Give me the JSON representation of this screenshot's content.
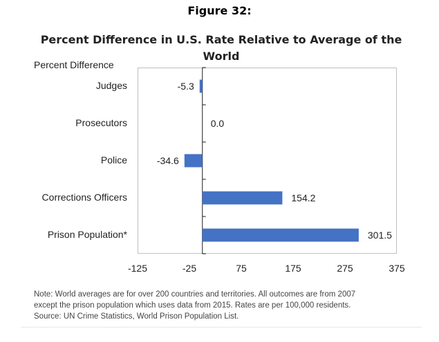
{
  "figure_label": "Figure 32:",
  "chart_data": {
    "type": "bar",
    "orientation": "horizontal",
    "title": "Percent Difference in U.S. Rate Relative to Average of the World",
    "ylabel": "Percent Difference",
    "xlabel": "",
    "categories": [
      "Judges",
      "Prosecutors",
      "Police",
      "Corrections Officers",
      "Prison Population*"
    ],
    "values": [
      -5.3,
      0.0,
      -34.6,
      154.2,
      301.5
    ],
    "value_labels": [
      "-5.3",
      "0.0",
      "-34.6",
      "154.2",
      "301.5"
    ],
    "xlim": [
      -125,
      375
    ],
    "xticks": [
      -125,
      -25,
      75,
      175,
      275,
      375
    ],
    "xtick_labels": [
      "-125",
      "-25",
      "75",
      "175",
      "275",
      "375"
    ],
    "bar_color": "#4472C4",
    "grid": false,
    "legend": "none"
  },
  "note": {
    "line1": "Note: World averages are for over 200 countries and territories. All outcomes are from 2007",
    "line2": "except the prison population which uses data from 2015. Rates are per 100,000 residents.",
    "line3": "Source: UN Crime Statistics, World Prison Population List."
  }
}
